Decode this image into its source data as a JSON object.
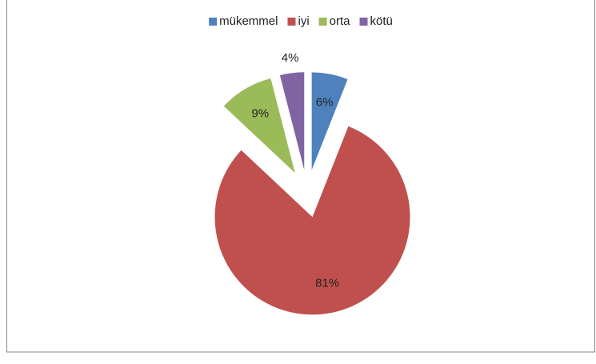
{
  "chart_data": {
    "type": "pie",
    "categories": [
      "mükemmel",
      "iyi",
      "orta",
      "kötü"
    ],
    "values": [
      6,
      81,
      9,
      4
    ],
    "value_labels": [
      "6%",
      "81%",
      "9%",
      "4%"
    ],
    "colors": [
      "#4f81bd",
      "#c0504d",
      "#9bbb59",
      "#8064a2"
    ],
    "legend": "top"
  }
}
